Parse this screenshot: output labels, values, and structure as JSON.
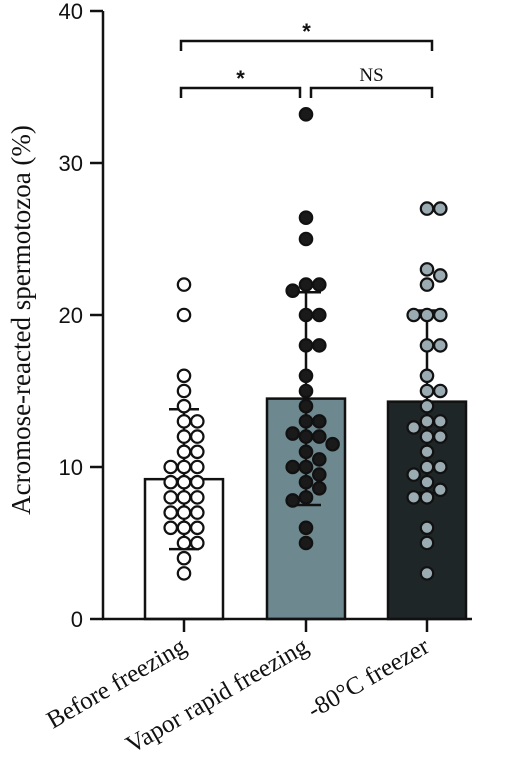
{
  "chart_data": {
    "type": "bar",
    "ylabel": "Acromose-reacted spermotozoa (%)",
    "ylim": [
      0,
      40
    ],
    "yticks": [
      0,
      10,
      20,
      30,
      40
    ],
    "categories": [
      "Before freezing",
      "Vapor rapid freezing",
      "-80°C freezer"
    ],
    "means": [
      9.2,
      14.5,
      14.3
    ],
    "sd": [
      4.6,
      7.0,
      6.0
    ],
    "bar_colors": [
      "#ffffff",
      "#6e8890",
      "#1f2628"
    ],
    "point_colors": [
      "#ffffff",
      "#1a1a1a",
      "#9aabb2"
    ],
    "points": [
      [
        22,
        20,
        16,
        15,
        14,
        13,
        13,
        12,
        12,
        11,
        11,
        10,
        10,
        10,
        9,
        9,
        9,
        8,
        8,
        8,
        7,
        7,
        7,
        6,
        6,
        6,
        5,
        5,
        4,
        3
      ],
      [
        33.2,
        26.4,
        25,
        22,
        22,
        21.6,
        20,
        20,
        18,
        18,
        16,
        15,
        14,
        13,
        13,
        12.2,
        12,
        12,
        11.5,
        11,
        10.5,
        10,
        10,
        9.5,
        9,
        8.6,
        8,
        7.8,
        6,
        5
      ],
      [
        27,
        27,
        23,
        22.6,
        22,
        20,
        20,
        20,
        18,
        18,
        16,
        15,
        15,
        14,
        13,
        13,
        12.6,
        12,
        12,
        11,
        10,
        10,
        9.5,
        9,
        8.5,
        8,
        8,
        6,
        5,
        3
      ]
    ],
    "significance": [
      {
        "from": 0,
        "to": 1,
        "label": "*"
      },
      {
        "from": 1,
        "to": 2,
        "label": "NS"
      },
      {
        "from": 0,
        "to": 2,
        "label": "*"
      }
    ]
  }
}
